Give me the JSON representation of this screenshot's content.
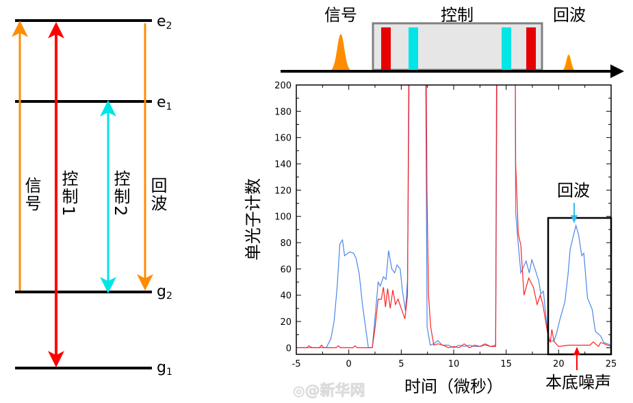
{
  "energy_diagram": {
    "levels": [
      "e",
      "e",
      "g",
      "g"
    ],
    "level_subscripts": [
      "2",
      "1",
      "2",
      "1"
    ],
    "transitions": [
      {
        "label": "信号",
        "color": "#ff8c00"
      },
      {
        "label": "控制1",
        "color": "#ff0000"
      },
      {
        "label": "控制2",
        "color": "#00e5e5"
      },
      {
        "label": "回波",
        "color": "#ff8c00"
      }
    ]
  },
  "timeline": {
    "signal_label": "信号",
    "control_label": "控制",
    "echo_label": "回波",
    "colors": {
      "signal": "#ff8c00",
      "control_red": "#e60000",
      "control_cyan": "#00e5e5",
      "box": "#e6e6e6"
    }
  },
  "chart_data": {
    "type": "line",
    "xlabel": "时间（微秒）",
    "ylabel": "单光子计数",
    "xlim": [
      -5,
      25
    ],
    "ylim": [
      -5,
      200
    ],
    "xticks": [
      "-5",
      "0",
      "5",
      "10",
      "15",
      "20",
      "25"
    ],
    "yticks": [
      "0",
      "20",
      "40",
      "60",
      "80",
      "100",
      "120",
      "140",
      "160",
      "180",
      "200"
    ],
    "grid": false,
    "series": [
      {
        "color": "#4a86e8",
        "points": [
          [
            -5,
            0
          ],
          [
            -2.15,
            0
          ],
          [
            -1.7,
            7
          ],
          [
            -1.4,
            20
          ],
          [
            -1.1,
            47
          ],
          [
            -0.85,
            79
          ],
          [
            -0.6,
            82
          ],
          [
            -0.4,
            70
          ],
          [
            0.1,
            73
          ],
          [
            0.45,
            72
          ],
          [
            0.7,
            68
          ],
          [
            1.0,
            56
          ],
          [
            1.3,
            33
          ],
          [
            1.65,
            12.5
          ],
          [
            1.87,
            0
          ],
          [
            2.24,
            0
          ],
          [
            2.5,
            23
          ],
          [
            2.8,
            50
          ],
          [
            3.0,
            47
          ],
          [
            3.3,
            54
          ],
          [
            3.55,
            52
          ],
          [
            3.8,
            74
          ],
          [
            4.1,
            60
          ],
          [
            4.37,
            57
          ],
          [
            4.6,
            63
          ],
          [
            4.9,
            60
          ],
          [
            5.1,
            44
          ],
          [
            5.4,
            28
          ],
          [
            5.6,
            51
          ],
          [
            5.8,
            250
          ],
          [
            7.3,
            250
          ],
          [
            7.46,
            16
          ],
          [
            7.76,
            2
          ],
          [
            8.1,
            3
          ],
          [
            8.5,
            5.5
          ],
          [
            8.9,
            2
          ],
          [
            9.5,
            2
          ],
          [
            10,
            0
          ],
          [
            10.5,
            2
          ],
          [
            11,
            1
          ],
          [
            11.5,
            2
          ],
          [
            12,
            1
          ],
          [
            12.5,
            1
          ],
          [
            13,
            2
          ],
          [
            13.5,
            1
          ],
          [
            14.0,
            2
          ],
          [
            14.15,
            250
          ],
          [
            15.85,
            250
          ],
          [
            15.9,
            103
          ],
          [
            16.15,
            79
          ],
          [
            16.4,
            57
          ],
          [
            16.9,
            66
          ],
          [
            17.2,
            57
          ],
          [
            17.45,
            67
          ],
          [
            17.75,
            60
          ],
          [
            18.1,
            51
          ],
          [
            18.3,
            41
          ],
          [
            18.55,
            43
          ],
          [
            18.8,
            23
          ],
          [
            19.05,
            5.5
          ],
          [
            19.25,
            5
          ],
          [
            19.55,
            5
          ],
          [
            19.8,
            11
          ],
          [
            20.1,
            21
          ],
          [
            20.35,
            28
          ],
          [
            20.6,
            35
          ],
          [
            20.9,
            56
          ],
          [
            21.1,
            75
          ],
          [
            21.37,
            84
          ],
          [
            21.65,
            93
          ],
          [
            21.9,
            86
          ],
          [
            22.2,
            70
          ],
          [
            22.4,
            72
          ],
          [
            22.75,
            38
          ],
          [
            23.2,
            29
          ],
          [
            23.5,
            12.5
          ],
          [
            24.0,
            9
          ],
          [
            24.3,
            4
          ],
          [
            25,
            2
          ]
        ]
      },
      {
        "color": "#ff2020",
        "points": [
          [
            -5,
            0
          ],
          [
            -4,
            0
          ],
          [
            -3.8,
            1.5
          ],
          [
            -3.5,
            0
          ],
          [
            -2.8,
            0
          ],
          [
            -2.6,
            2
          ],
          [
            -2.4,
            0
          ],
          [
            -1.2,
            0
          ],
          [
            -1.0,
            1.5
          ],
          [
            -0.8,
            0
          ],
          [
            0.4,
            0
          ],
          [
            0.6,
            1.5
          ],
          [
            0.8,
            0
          ],
          [
            2.24,
            0
          ],
          [
            2.5,
            15
          ],
          [
            2.8,
            37
          ],
          [
            3.1,
            37
          ],
          [
            3.3,
            46
          ],
          [
            3.5,
            31
          ],
          [
            3.7,
            45
          ],
          [
            3.95,
            30
          ],
          [
            4.2,
            44
          ],
          [
            4.45,
            33
          ],
          [
            4.7,
            37
          ],
          [
            4.95,
            31
          ],
          [
            5.35,
            22
          ],
          [
            5.6,
            40
          ],
          [
            5.75,
            250
          ],
          [
            7.35,
            250
          ],
          [
            7.45,
            120
          ],
          [
            7.6,
            40
          ],
          [
            7.8,
            16
          ],
          [
            8.1,
            2
          ],
          [
            8.5,
            3
          ],
          [
            9,
            2
          ],
          [
            9.5,
            0
          ],
          [
            10,
            1
          ],
          [
            10.5,
            0
          ],
          [
            11,
            3
          ],
          [
            11.5,
            0
          ],
          [
            12,
            2
          ],
          [
            12.5,
            1
          ],
          [
            13,
            3
          ],
          [
            13.5,
            1
          ],
          [
            14.0,
            1
          ],
          [
            14.1,
            250
          ],
          [
            15.85,
            250
          ],
          [
            15.9,
            141
          ],
          [
            16.15,
            87
          ],
          [
            16.4,
            78
          ],
          [
            16.7,
            40
          ],
          [
            17.15,
            53
          ],
          [
            17.6,
            46
          ],
          [
            17.95,
            33
          ],
          [
            18.25,
            40
          ],
          [
            18.5,
            33
          ],
          [
            18.95,
            11
          ],
          [
            19.2,
            4
          ],
          [
            19.35,
            14
          ],
          [
            19.55,
            5
          ],
          [
            20.0,
            1
          ],
          [
            21,
            2
          ],
          [
            22,
            2
          ],
          [
            23.0,
            2
          ],
          [
            23.3,
            4.5
          ],
          [
            23.5,
            3
          ],
          [
            23.8,
            1
          ],
          [
            24,
            4
          ],
          [
            25,
            1
          ]
        ]
      }
    ],
    "annotations": {
      "echo": "回波",
      "noise": "本底噪声",
      "echo_arrow_color": "#33bbee",
      "noise_arrow_color": "#ff0000"
    }
  },
  "watermark": "@新华网"
}
